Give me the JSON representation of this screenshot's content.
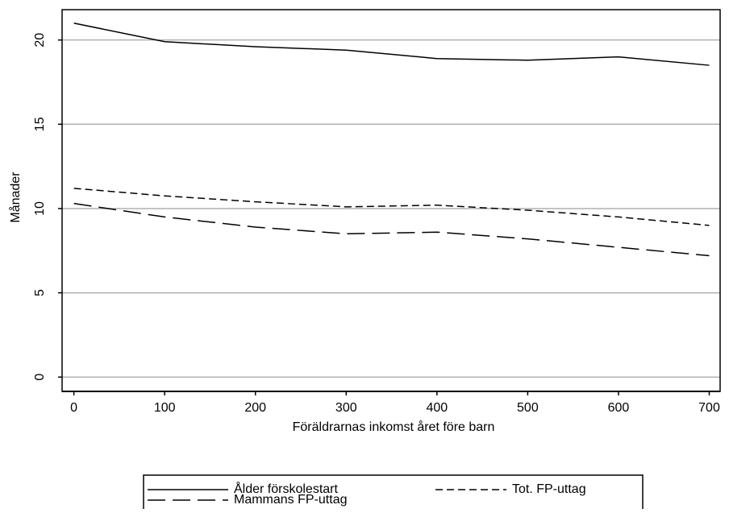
{
  "chart_data": {
    "type": "line",
    "x_label": "Föräldrarnas inkomst året före barn",
    "y_label": "Månader",
    "x": [
      0,
      100,
      200,
      300,
      400,
      500,
      600,
      700
    ],
    "series": [
      {
        "name": "Ålder förskolestart",
        "color": "#000000",
        "dash": "solid",
        "values": [
          21.0,
          19.9,
          19.6,
          19.4,
          18.9,
          18.8,
          19.0,
          18.5
        ]
      },
      {
        "name": "Tot. FP-uttag",
        "color": "#000000",
        "dash": "short",
        "values": [
          11.2,
          10.75,
          10.4,
          10.1,
          10.2,
          9.9,
          9.5,
          9.0
        ]
      },
      {
        "name": "Mammans FP-uttag",
        "color": "#000000",
        "dash": "long",
        "values": [
          10.3,
          9.5,
          8.9,
          8.5,
          8.6,
          8.2,
          7.7,
          7.2
        ]
      }
    ],
    "xlim": [
      -13,
      712
    ],
    "ylim": [
      -0.85,
      21.8
    ],
    "xticks": [
      0,
      100,
      200,
      300,
      400,
      500,
      600,
      700
    ],
    "yticks": [
      0,
      5,
      10,
      15,
      20
    ],
    "grid": true,
    "legend_position": "bottom"
  }
}
